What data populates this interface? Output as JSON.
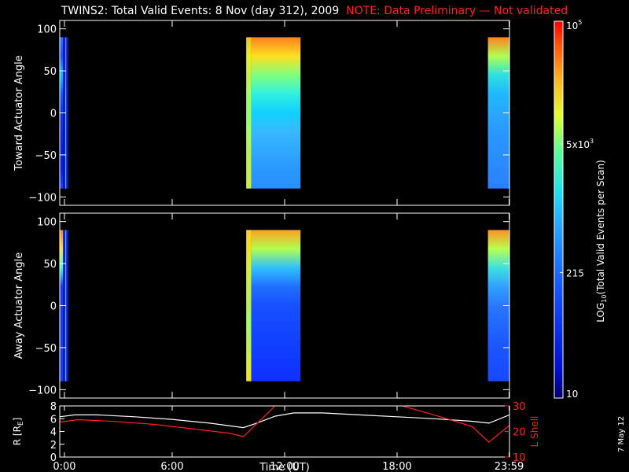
{
  "header": {
    "title": "TWINS2: Total Valid Events:  8 Nov (day 312), 2009",
    "note": "NOTE: Data Preliminary — Not validated",
    "note_color": "#ff2020"
  },
  "datestamp": "7 May 12",
  "chart_data": [
    {
      "type": "heatmap",
      "name": "toward",
      "ylabel": "Toward Actuator Angle",
      "ylim": [
        -110,
        110
      ],
      "yticks": [
        -100,
        -50,
        0,
        50,
        100
      ],
      "ytick_labels": [
        "−100",
        "−50",
        "0",
        "50",
        "100"
      ],
      "value_range": [
        -90,
        90
      ],
      "xlim": [
        0,
        24
      ],
      "data_intervals": [
        {
          "start": 0.0,
          "end": 0.18,
          "colors": [
            "#2040ff",
            "#0a1ee0",
            "#0a1ee0",
            "#1428e6",
            "#1430ee",
            "#0c5cff",
            "#00c6ff",
            "#1a4cff",
            "#2a78ff"
          ]
        },
        {
          "start": 0.18,
          "end": 0.3,
          "colors": [
            "#001cd8",
            "#001cd8",
            "#001cd8",
            "#001cd8",
            "#001cd8",
            "#001cd8",
            "#001cd8",
            "#001cd8",
            "#001cd8"
          ]
        },
        {
          "start": 0.3,
          "end": 0.35,
          "colors": [
            "#50ff80",
            "#50ff80",
            "#50ff80",
            "#50ff80",
            "#50ff80",
            "#50ff80",
            "#ff9020",
            "#ff9020",
            "#ff9020"
          ]
        },
        {
          "start": 0.35,
          "end": 0.45,
          "colors": [
            "#001cd8",
            "#001cd8",
            "#001cd8",
            "#001cd8",
            "#001cd8",
            "#001cd8",
            "#001cd8",
            "#001cd8",
            "#001cd8"
          ]
        },
        {
          "start": 9.95,
          "end": 10.22,
          "colors": [
            "#c8f040",
            "#c8f040",
            "#b8f050",
            "#a8ff60",
            "#98ff70",
            "#a0ff60",
            "#c8f040",
            "#e8f020",
            "#f0c020"
          ]
        },
        {
          "start": 10.22,
          "end": 12.85,
          "colors": [
            "#2890ff",
            "#2a98ff",
            "#30a8ff",
            "#38b8ff",
            "#10d0ff",
            "#30f0e0",
            "#80ff80",
            "#ffe020",
            "#ff8020"
          ]
        },
        {
          "start": 22.85,
          "end": 24.0,
          "colors": [
            "#2a80ff",
            "#2a88ff",
            "#2a90ff",
            "#2898ff",
            "#28a8ff",
            "#20b8ff",
            "#30e0e0",
            "#b0ff50",
            "#ff8020"
          ]
        }
      ]
    },
    {
      "type": "heatmap",
      "name": "away",
      "ylabel": "Away Actuator Angle",
      "ylim": [
        -110,
        110
      ],
      "yticks": [
        -100,
        -50,
        0,
        50,
        100
      ],
      "ytick_labels": [
        "−100",
        "−50",
        "0",
        "50",
        "100"
      ],
      "value_range": [
        -90,
        90
      ],
      "xlim": [
        0,
        24
      ],
      "data_intervals": [
        {
          "start": 0.0,
          "end": 0.18,
          "colors": [
            "#1c3af0",
            "#1c3af0",
            "#1c3af0",
            "#1c3af0",
            "#1c3af0",
            "#1c3af0",
            "#40ffc0",
            "#ffe020",
            "#ff8020"
          ]
        },
        {
          "start": 0.18,
          "end": 0.3,
          "colors": [
            "#0a20d8",
            "#0a20d8",
            "#0a20d8",
            "#0a20d8",
            "#0a20d8",
            "#0a20d8",
            "#0a20d8",
            "#0a20d8",
            "#0a20d8"
          ]
        },
        {
          "start": 0.3,
          "end": 0.35,
          "colors": [
            "#38f0d0",
            "#38f0d0",
            "#38f0d0",
            "#38f0d0",
            "#38f0d0",
            "#38f0d0",
            "#38f0d0",
            "#38f0d0",
            "#38f0d0"
          ]
        },
        {
          "start": 0.35,
          "end": 0.45,
          "colors": [
            "#0a20d8",
            "#0a20d8",
            "#0a20d8",
            "#0a20d8",
            "#0a20d8",
            "#0a20d8",
            "#0a20d8",
            "#0a20d8",
            "#0a20d8"
          ]
        },
        {
          "start": 9.95,
          "end": 10.22,
          "colors": [
            "#f0e020",
            "#d8f030",
            "#b8f050",
            "#a0ff60",
            "#b8f050",
            "#c8f040",
            "#d8f030",
            "#f0e020",
            "#ffd020"
          ]
        },
        {
          "start": 10.22,
          "end": 12.85,
          "colors": [
            "#1030ff",
            "#1038ff",
            "#1040ff",
            "#1448ff",
            "#1850ff",
            "#2070ff",
            "#30c0ff",
            "#b0ff50",
            "#ffa020"
          ]
        },
        {
          "start": 22.85,
          "end": 24.0,
          "colors": [
            "#1848ff",
            "#1850ff",
            "#1c58ff",
            "#2068ff",
            "#2878ff",
            "#30a0ff",
            "#40e0e0",
            "#b8ff50",
            "#ff9020"
          ]
        }
      ]
    },
    {
      "type": "line",
      "name": "orbit",
      "ylabel": "R [R",
      "ylabel_sub": "E",
      "ylabel_tail": "]",
      "ylim": [
        0,
        8
      ],
      "yticks": [
        0,
        2,
        4,
        6,
        8
      ],
      "ytick_labels": [
        "0",
        "2",
        "4",
        "6",
        "8"
      ],
      "y2label": "L Shell",
      "y2lim": [
        10,
        30
      ],
      "y2ticks": [
        10,
        20,
        30
      ],
      "y2tick_labels": [
        "10",
        "20",
        "30"
      ],
      "xlabel": "Time (UT)",
      "xlim": [
        0,
        24
      ],
      "xticks": [
        0.25,
        6,
        12,
        18,
        23.98
      ],
      "xtick_labels": [
        "0:00",
        "6:00",
        "12:00",
        "18:00",
        "23:59"
      ],
      "series": [
        {
          "axis": "left",
          "color": "#ffffff",
          "x": [
            0,
            0.8,
            2,
            4,
            6,
            8,
            9.8,
            10.5,
            11.5,
            12.5,
            14,
            16,
            18,
            20,
            22,
            22.9,
            24
          ],
          "y": [
            6.3,
            6.6,
            6.6,
            6.3,
            5.9,
            5.3,
            4.6,
            5.3,
            6.4,
            6.9,
            6.9,
            6.6,
            6.3,
            6.0,
            5.6,
            5.3,
            6.6
          ]
        },
        {
          "axis": "right",
          "color": "#ff2020",
          "x": [
            0,
            1,
            3,
            5,
            7,
            9,
            9.8,
            11.35,
            11.5
          ],
          "y": [
            23.7,
            24.6,
            23.9,
            22.8,
            21.1,
            19.4,
            18.0,
            29.0,
            30.5
          ]
        },
        {
          "axis": "right",
          "color": "#ff2020",
          "x": [
            18.2,
            20,
            22,
            22.9,
            24
          ],
          "y": [
            30.2,
            26.4,
            22.0,
            15.8,
            22.4
          ]
        }
      ]
    }
  ],
  "colorbar": {
    "label_main": "LOG",
    "label_sub": "10",
    "label_tail": "(Total Valid Events per Scan)",
    "range": [
      10,
      100000
    ],
    "scale": "log",
    "tick_values": [
      100000,
      5000,
      215,
      10
    ],
    "tick_labels": [
      {
        "mant": "10",
        "exp": "5"
      },
      {
        "mant": "5x10",
        "exp": "3"
      },
      {
        "mant": "215",
        "exp": ""
      },
      {
        "mant": "10",
        "exp": ""
      }
    ]
  }
}
